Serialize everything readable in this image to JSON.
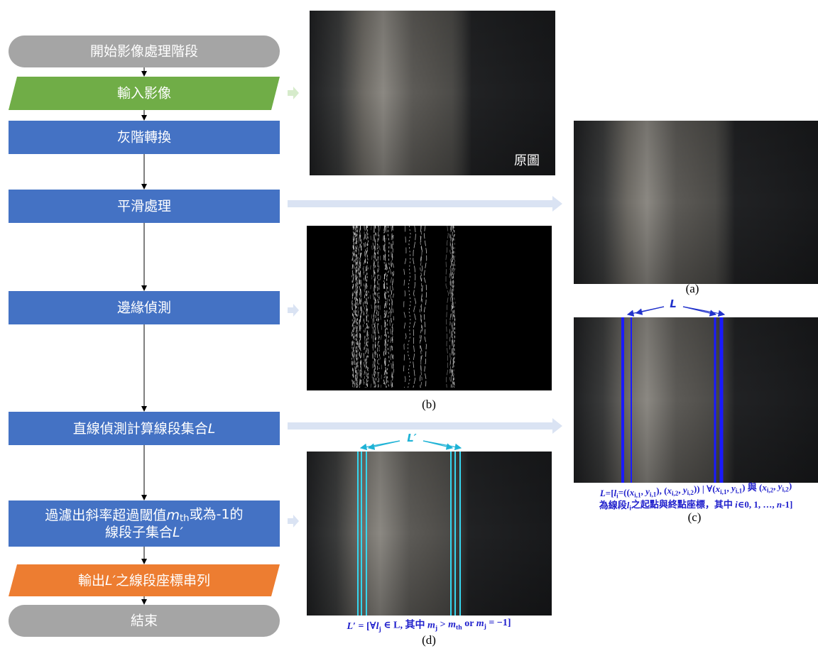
{
  "nodes": [
    "開始影像處理階段",
    "輸入影像",
    "灰階轉換",
    "平滑處理",
    "邊緣偵測",
    [
      "直線偵測計算線段集合",
      "L"
    ],
    [
      [
        "過濾出斜率超過閾值",
        "m",
        "th",
        "或為-1的"
      ],
      [
        "線段子集合",
        "L′"
      ]
    ],
    [
      "輸出",
      "L′",
      "之線段座標串列"
    ],
    "結束"
  ],
  "images": {
    "original_label": "原圖",
    "a_label": "(a)",
    "b_label": "(b)",
    "c_label": "(c)",
    "d_label": "(d)",
    "c_marker": "L",
    "d_marker": "L′",
    "c_caption": [
      [
        "L",
        "=[",
        "l",
        "i",
        "=((",
        "x",
        "i,1",
        ", ",
        "y",
        "i,1",
        "), (",
        "x",
        "i,2",
        ", ",
        "y",
        "i,2",
        ")) | ∀(",
        "x",
        "i,1",
        ", ",
        "y",
        "i,1",
        ") 與 (",
        "x",
        "i,2",
        ", ",
        "y",
        "i,2",
        ")"
      ],
      [
        "為線段",
        "l",
        "i",
        "之起點與終點座標，其中 ",
        "i",
        "∈0, 1, …, ",
        "n",
        "-1]"
      ]
    ],
    "d_caption": [
      "L",
      "′ = [∀",
      "l",
      "j",
      " ∈ L, 其中 ",
      "m",
      "j",
      " > ",
      "m",
      "th",
      " or ",
      "m",
      "j",
      " = −1]"
    ]
  }
}
